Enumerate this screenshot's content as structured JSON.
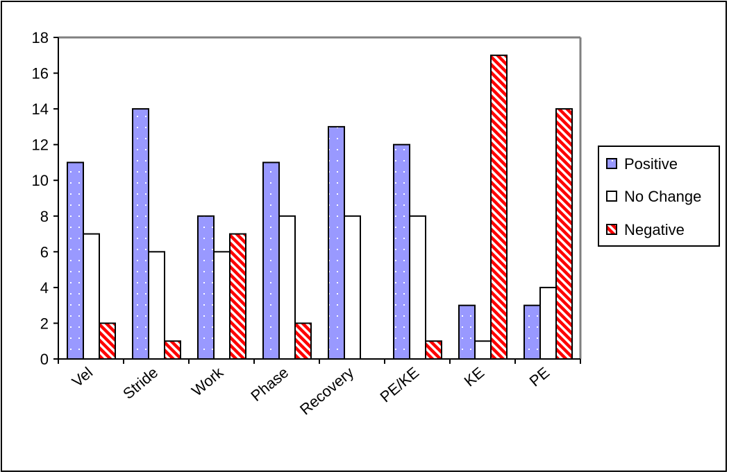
{
  "chart_data": {
    "type": "bar",
    "title": "",
    "xlabel": "",
    "ylabel": "",
    "categories": [
      "Vel",
      "Stride",
      "Work",
      "Phase",
      "Recovery",
      "PE/KE",
      "KE",
      "PE"
    ],
    "series": [
      {
        "name": "Positive",
        "values": [
          11,
          14,
          8,
          11,
          13,
          12,
          3,
          3
        ],
        "color": "#9999ff",
        "pattern": "dotted"
      },
      {
        "name": "No Change",
        "values": [
          7,
          6,
          6,
          8,
          8,
          8,
          1,
          4
        ],
        "color": "#ffffff",
        "pattern": "solid"
      },
      {
        "name": "Negative",
        "values": [
          2,
          1,
          7,
          2,
          0,
          1,
          17,
          14
        ],
        "color": "#ff0000",
        "pattern": "diagonal-stripes"
      }
    ],
    "ylim": [
      0,
      18
    ],
    "yticks": [
      0,
      2,
      4,
      6,
      8,
      10,
      12,
      14,
      16,
      18
    ],
    "grid": false,
    "legend_position": "right",
    "plot_border_color": "#808080"
  }
}
